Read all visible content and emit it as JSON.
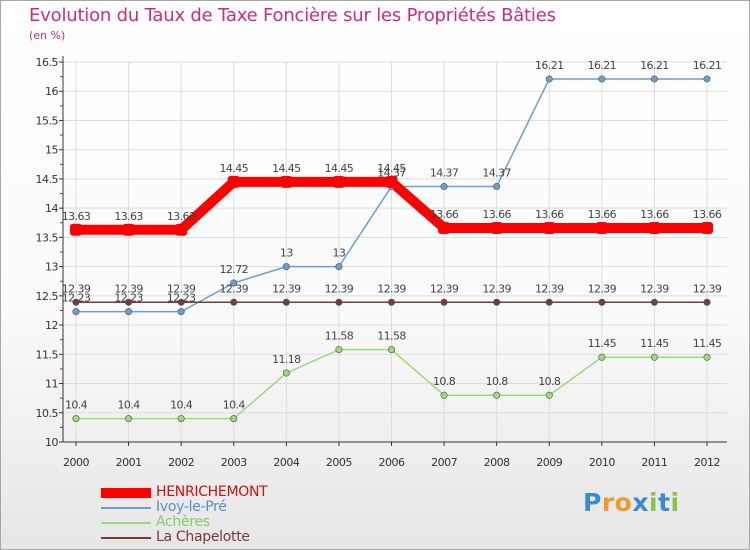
{
  "header": {
    "title": "Evolution du Taux de Taxe Foncière sur les Propriétés Bâties",
    "unit": "(en %)"
  },
  "chart_data": {
    "type": "line",
    "title": "Evolution du Taux de Taxe Foncière sur les Propriétés Bâties",
    "ylabel": "(en %)",
    "xlabel": "",
    "ylim": [
      10,
      16.5
    ],
    "yticks": [
      "10",
      "10.5",
      "11",
      "11.5",
      "12",
      "12.5",
      "13",
      "13.5",
      "14",
      "14.5",
      "15",
      "15.5",
      "16",
      "16.5"
    ],
    "categories": [
      "2000",
      "2001",
      "2002",
      "2003",
      "2004",
      "2005",
      "2006",
      "2007",
      "2008",
      "2009",
      "2010",
      "2011",
      "2012"
    ],
    "series": [
      {
        "name": "HENRICHEMONT",
        "color": "#ff0000",
        "values": [
          13.63,
          13.63,
          13.63,
          14.45,
          14.45,
          14.45,
          14.45,
          13.66,
          13.66,
          13.66,
          13.66,
          13.66,
          13.66
        ],
        "labels": [
          "13.63",
          "13.63",
          "13.63",
          "14.45",
          "14.45",
          "14.45",
          "14.45",
          "13.66",
          "13.66",
          "13.66",
          "13.66",
          "13.66",
          "13.66"
        ]
      },
      {
        "name": "Ivoy-le-Pré",
        "color": "#6a9fd2",
        "values": [
          12.23,
          12.23,
          12.23,
          12.72,
          13,
          13,
          14.37,
          14.37,
          14.37,
          16.21,
          16.21,
          16.21,
          16.21
        ],
        "labels": [
          "12.23",
          "12.23",
          "12.23",
          "12.72",
          "13",
          "13",
          "14.37",
          "14.37",
          "14.37",
          "16.21",
          "16.21",
          "16.21",
          "16.21"
        ]
      },
      {
        "name": "Achères",
        "color": "#99dd77",
        "values": [
          10.4,
          10.4,
          10.4,
          10.4,
          11.18,
          11.58,
          11.58,
          10.8,
          10.8,
          10.8,
          11.45,
          11.45,
          11.45
        ],
        "labels": [
          "10.4",
          "10.4",
          "10.4",
          "10.4",
          "11.18",
          "11.58",
          "11.58",
          "10.8",
          "10.8",
          "10.8",
          "11.45",
          "11.45",
          "11.45"
        ]
      },
      {
        "name": "La Chapelotte",
        "color": "#7a3a3a",
        "values": [
          12.39,
          12.39,
          12.39,
          12.39,
          12.39,
          12.39,
          12.39,
          12.39,
          12.39,
          12.39,
          12.39,
          12.39,
          12.39
        ],
        "labels": [
          "12.39",
          "12.39",
          "12.39",
          "12.39",
          "12.39",
          "12.39",
          "12.39",
          "12.39",
          "12.39",
          "12.39",
          "12.39",
          "12.39",
          "12.39"
        ]
      }
    ],
    "grid": true,
    "legend_position": "bottom-left"
  },
  "colors": {
    "title": "#d02a82",
    "grid": "#dddddd",
    "axis": "#333333",
    "tick_marks": "#cc2222",
    "label_text": "#444444"
  },
  "brand": {
    "letters": [
      "P",
      "r",
      "o",
      "x",
      "i",
      "t",
      "i"
    ],
    "colors": [
      "#3a8ad4",
      "#f2992e",
      "#f2992e",
      "#3a8ad4",
      "#88c540",
      "#3a8ad4",
      "#88c540"
    ]
  }
}
